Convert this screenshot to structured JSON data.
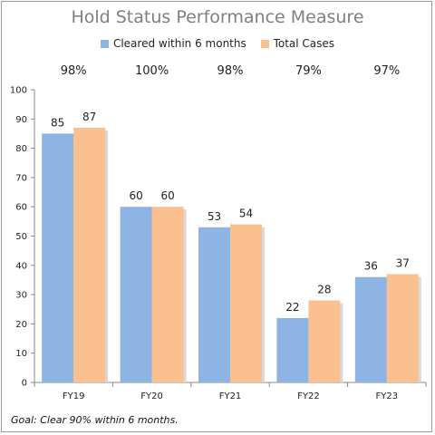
{
  "chart_data": {
    "type": "bar",
    "title": "Hold Status Performance Measure",
    "categories": [
      "FY19",
      "FY20",
      "FY21",
      "FY22",
      "FY23"
    ],
    "series": [
      {
        "name": "Cleared within 6 months",
        "values": [
          85,
          60,
          53,
          22,
          36
        ],
        "color": "#8eb4e3"
      },
      {
        "name": "Total Cases",
        "values": [
          87,
          60,
          54,
          28,
          37
        ],
        "color": "#fac090"
      }
    ],
    "percentages": [
      "98%",
      "100%",
      "98%",
      "79%",
      "97%"
    ],
    "ylim": [
      0,
      100
    ],
    "yticks": [
      0,
      10,
      20,
      30,
      40,
      50,
      60,
      70,
      80,
      90,
      100
    ],
    "grid": false,
    "legend_position": "top",
    "footnote": "Goal:  Clear 90% within 6 months."
  }
}
